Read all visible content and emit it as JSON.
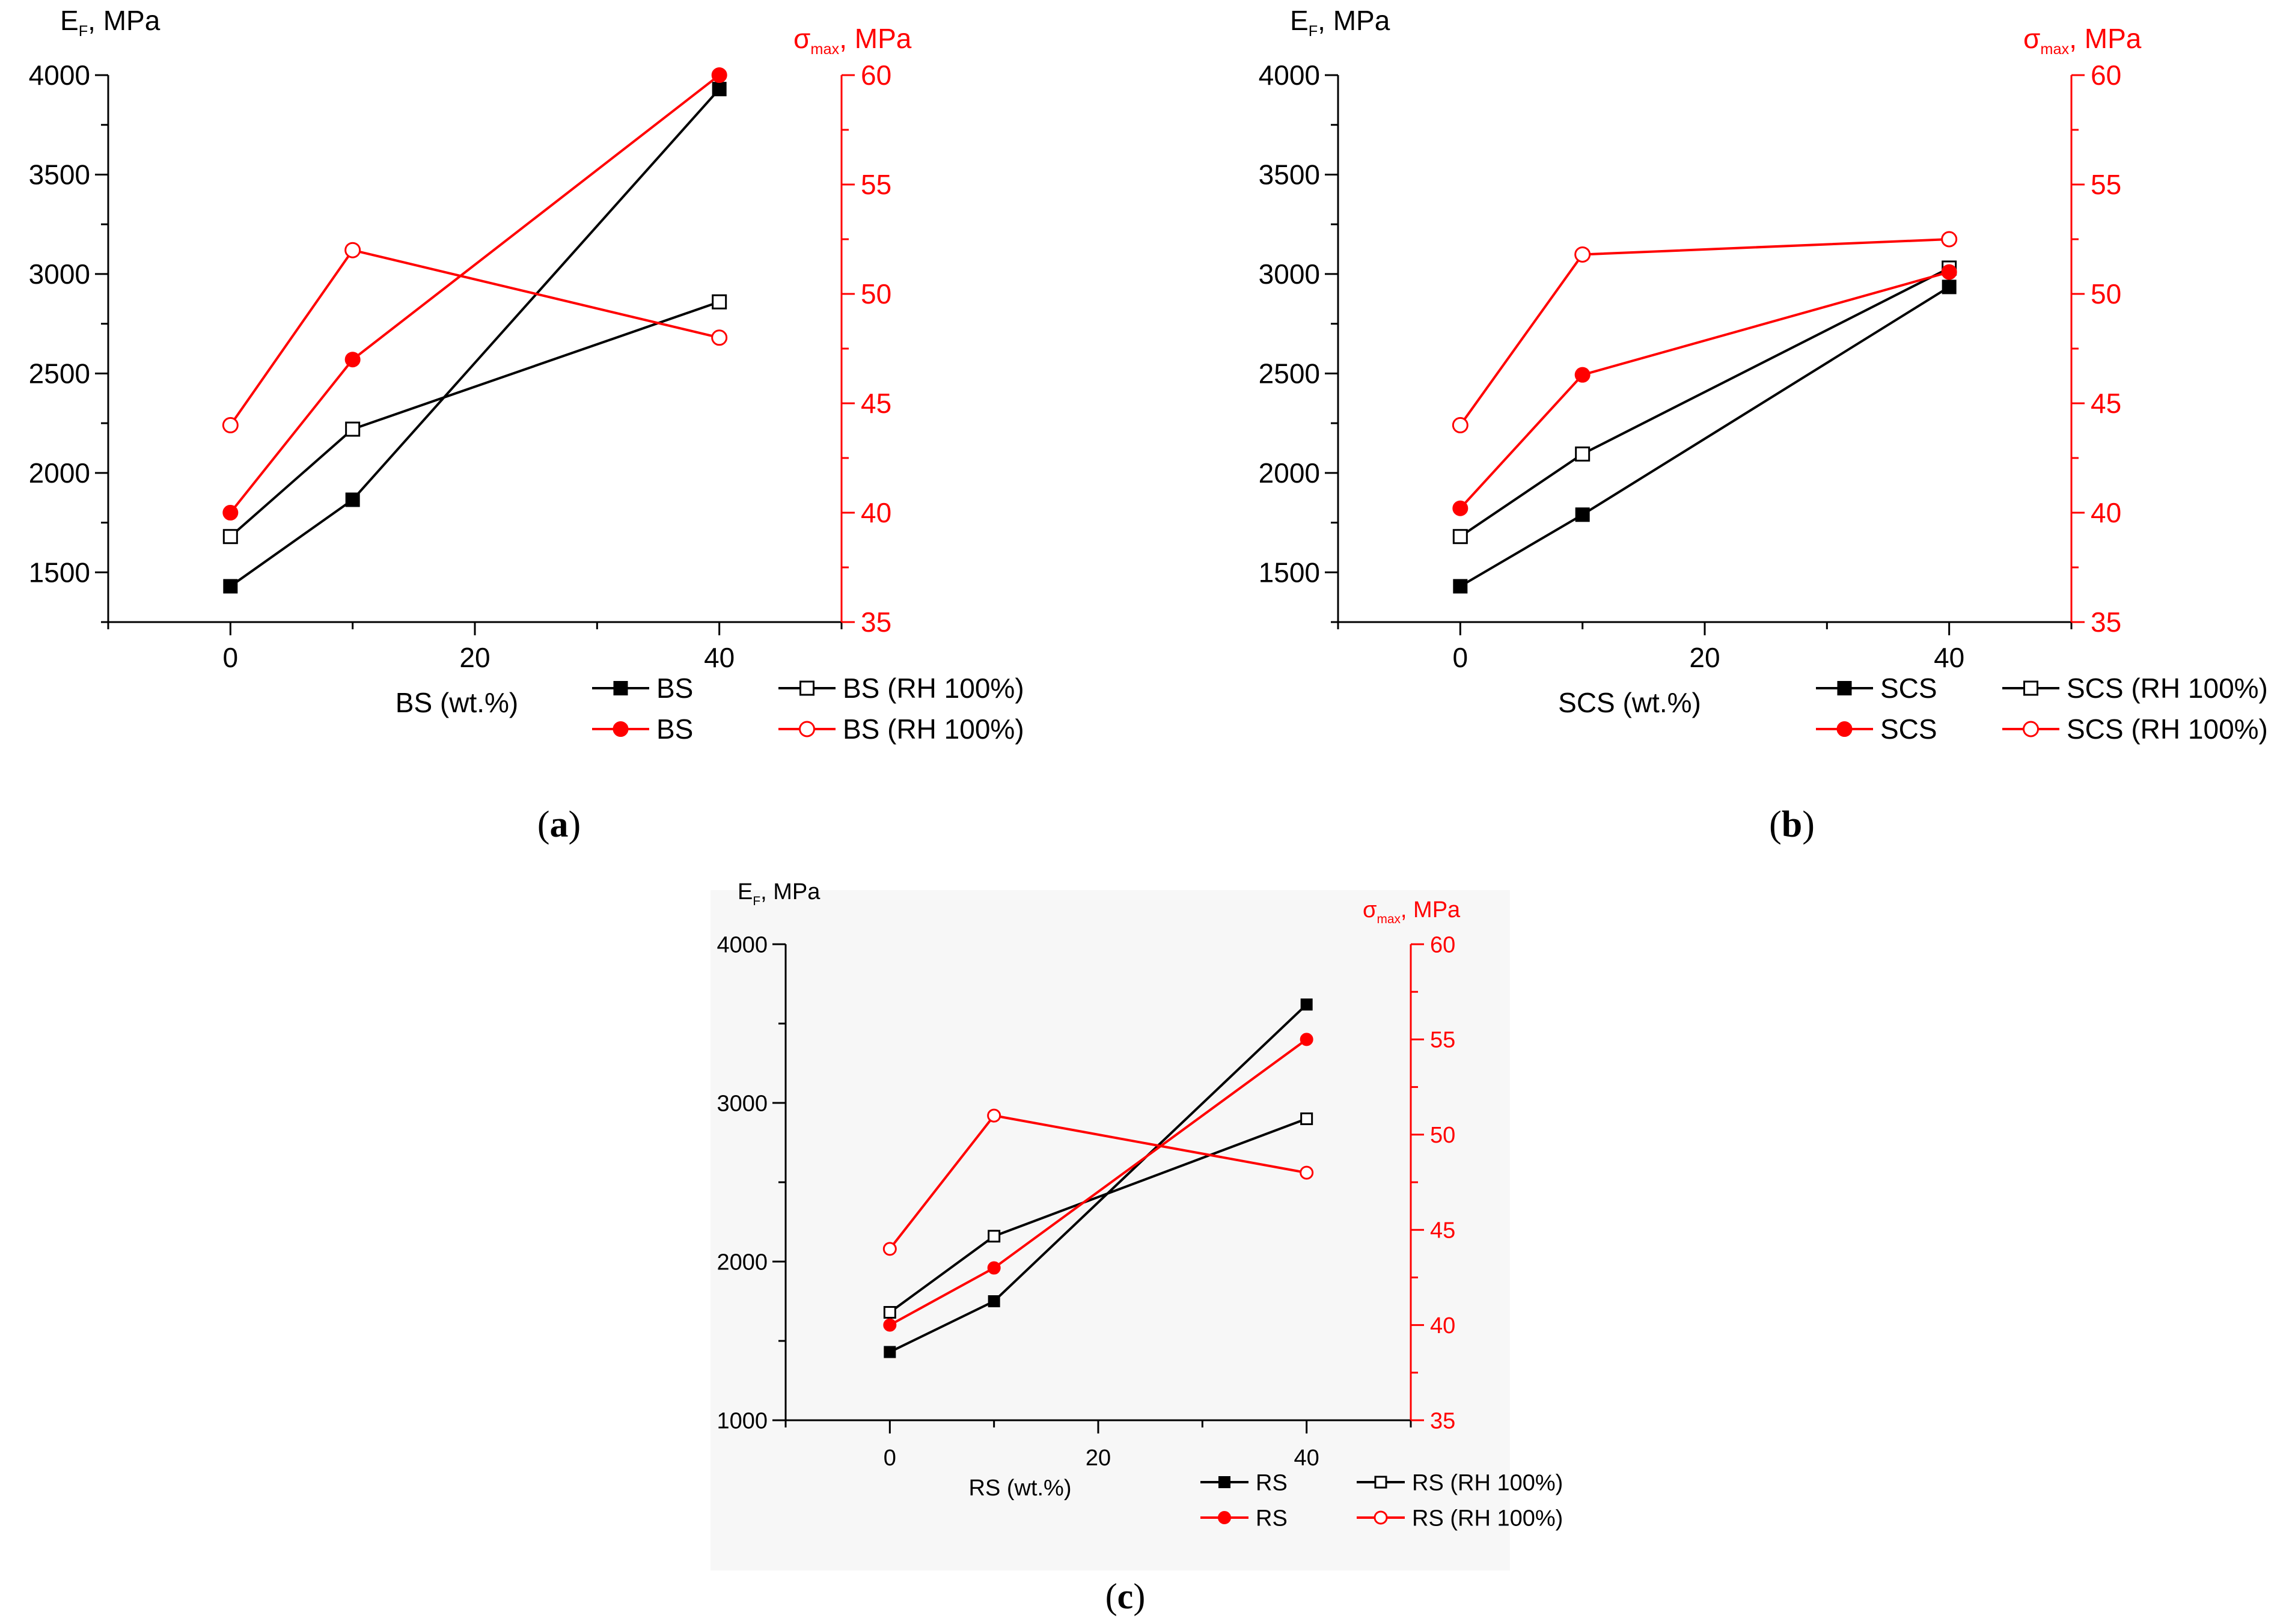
{
  "chart_data": [
    {
      "type": "line",
      "panel": "a",
      "caption": "(a)",
      "caption_parts": {
        "open": "(",
        "letter": "a",
        "close": ")"
      },
      "xlabel": "BS (wt.%)",
      "ylabel_left": {
        "main": "E",
        "sub": "F",
        "rest": ", MPa"
      },
      "ylabel_right": {
        "main": "σ",
        "sub": "max",
        "rest": ", MPa"
      },
      "xlim": [
        -10,
        50
      ],
      "ylim_left": [
        1250,
        4000
      ],
      "ylim_right": [
        35,
        60
      ],
      "x_ticks": [
        0,
        20,
        40
      ],
      "y_left_ticks": [
        1500,
        2000,
        2500,
        3000,
        3500,
        4000
      ],
      "y_right_ticks": [
        35,
        40,
        45,
        50,
        55,
        60
      ],
      "x": [
        0,
        10,
        40
      ],
      "series": [
        {
          "name": "BS",
          "axis": "left",
          "color": "#000000",
          "marker": "filled-square",
          "values": [
            1430,
            1865,
            3930
          ]
        },
        {
          "name": "BS (RH 100%)",
          "axis": "left",
          "color": "#000000",
          "marker": "open-square",
          "values": [
            1680,
            2220,
            2860
          ]
        },
        {
          "name": "BS",
          "axis": "right",
          "color": "#ff0000",
          "marker": "filled-circle",
          "values": [
            40.0,
            47.0,
            60.0
          ]
        },
        {
          "name": "BS (RH 100%)",
          "axis": "right",
          "color": "#ff0000",
          "marker": "open-circle",
          "values": [
            44.0,
            52.0,
            48.0
          ]
        }
      ]
    },
    {
      "type": "line",
      "panel": "b",
      "caption": "(b)",
      "caption_parts": {
        "open": "(",
        "letter": "b",
        "close": ")"
      },
      "xlabel": "SCS (wt.%)",
      "ylabel_left": {
        "main": "E",
        "sub": "F",
        "rest": ", MPa"
      },
      "ylabel_right": {
        "main": "σ",
        "sub": "max",
        "rest": ", MPa"
      },
      "xlim": [
        -10,
        50
      ],
      "ylim_left": [
        1250,
        4000
      ],
      "ylim_right": [
        35,
        60
      ],
      "x_ticks": [
        0,
        20,
        40
      ],
      "y_left_ticks": [
        1500,
        2000,
        2500,
        3000,
        3500,
        4000
      ],
      "y_right_ticks": [
        35,
        40,
        45,
        50,
        55,
        60
      ],
      "x": [
        0,
        10,
        40
      ],
      "series": [
        {
          "name": "SCS",
          "axis": "left",
          "color": "#000000",
          "marker": "filled-square",
          "values": [
            1430,
            1790,
            2935
          ]
        },
        {
          "name": "SCS (RH 100%)",
          "axis": "left",
          "color": "#000000",
          "marker": "open-square",
          "values": [
            1680,
            2095,
            3030
          ]
        },
        {
          "name": "SCS",
          "axis": "right",
          "color": "#ff0000",
          "marker": "filled-circle",
          "values": [
            40.2,
            46.3,
            51.0
          ]
        },
        {
          "name": "SCS (RH 100%)",
          "axis": "right",
          "color": "#ff0000",
          "marker": "open-circle",
          "values": [
            44.0,
            51.8,
            52.5
          ]
        }
      ]
    },
    {
      "type": "line",
      "panel": "c",
      "caption": "(c)",
      "caption_parts": {
        "open": "(",
        "letter": "c",
        "close": ")"
      },
      "xlabel": "RS (wt.%)",
      "ylabel_left": {
        "main": "E",
        "sub": "F",
        "rest": ", MPa"
      },
      "ylabel_right": {
        "main": "σ",
        "sub": "max",
        "rest": ", MPa"
      },
      "xlim": [
        -10,
        50
      ],
      "ylim_left": [
        1000,
        4000
      ],
      "ylim_right": [
        35,
        60
      ],
      "x_ticks": [
        0,
        20,
        40
      ],
      "y_left_ticks": [
        1000,
        2000,
        3000,
        4000
      ],
      "y_right_ticks": [
        35,
        40,
        45,
        50,
        55,
        60
      ],
      "x": [
        0,
        10,
        40
      ],
      "series": [
        {
          "name": "RS",
          "axis": "left",
          "color": "#000000",
          "marker": "filled-square",
          "values": [
            1430,
            1750,
            3620
          ]
        },
        {
          "name": "RS (RH 100%)",
          "axis": "left",
          "color": "#000000",
          "marker": "open-square",
          "values": [
            1680,
            2160,
            2900
          ]
        },
        {
          "name": "RS",
          "axis": "right",
          "color": "#ff0000",
          "marker": "filled-circle",
          "values": [
            40.0,
            43.0,
            55.0
          ]
        },
        {
          "name": "RS (RH 100%)",
          "axis": "right",
          "color": "#ff0000",
          "marker": "open-circle",
          "values": [
            44.0,
            51.0,
            48.0
          ]
        }
      ]
    }
  ]
}
